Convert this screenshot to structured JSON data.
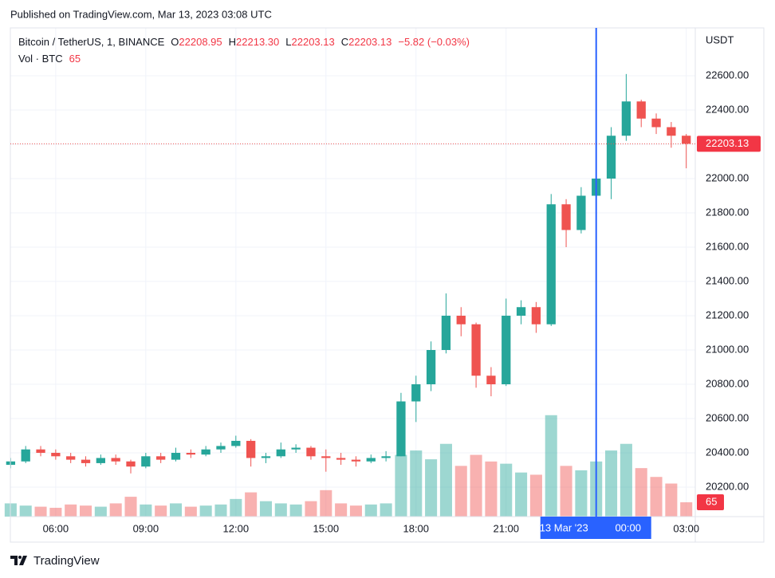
{
  "header": {
    "published": "Published on TradingView.com, Mar 13, 2023 03:08 UTC",
    "symbol": "Bitcoin / TetherUS, 1, BINANCE",
    "o_label": "O",
    "open": "22208.95",
    "h_label": "H",
    "high": "22213.30",
    "l_label": "L",
    "low": "22203.13",
    "c_label": "C",
    "close": "22203.13",
    "change": "−5.82 (−0.03%)",
    "vol_label": "Vol · BTC",
    "vol_value": "65",
    "currency": "USDT"
  },
  "footer": {
    "brand": "TradingView"
  },
  "chart_data": {
    "type": "candlestick",
    "x": [
      4.5,
      5,
      5.5,
      6,
      6.5,
      7,
      7.5,
      8,
      8.5,
      9,
      9.5,
      10,
      10.5,
      11,
      11.5,
      12,
      12.5,
      13,
      13.5,
      14,
      14.5,
      15,
      15.5,
      16,
      16.5,
      17,
      17.5,
      18,
      18.5,
      19,
      19.5,
      20,
      20.5,
      21,
      21.5,
      22,
      22.5,
      23,
      23.5,
      24,
      24.5,
      25,
      25.5,
      26,
      26.5,
      27
    ],
    "open": [
      20330,
      20350,
      20420,
      20400,
      20380,
      20360,
      20340,
      20370,
      20350,
      20320,
      20380,
      20360,
      20400,
      20390,
      20420,
      20440,
      20470,
      20370,
      20380,
      20420,
      20430,
      20380,
      20370,
      20360,
      20350,
      20370,
      20380,
      20700,
      20800,
      21000,
      21200,
      21150,
      20850,
      20800,
      21200,
      21250,
      21150,
      21850,
      21700,
      21900,
      22000,
      22250,
      22450,
      22350,
      22300,
      22250
    ],
    "high": [
      20370,
      20440,
      20440,
      20420,
      20400,
      20380,
      20390,
      20390,
      20360,
      20400,
      20400,
      20430,
      20420,
      20440,
      20460,
      20500,
      20480,
      20400,
      20460,
      20450,
      20440,
      20420,
      20400,
      20380,
      20390,
      20410,
      20750,
      20850,
      21050,
      21330,
      21250,
      21160,
      20900,
      21300,
      21290,
      21280,
      21910,
      21880,
      21950,
      22150,
      22300,
      22610,
      22460,
      22380,
      22330,
      22260
    ],
    "low": [
      20310,
      20340,
      20380,
      20360,
      20340,
      20320,
      20330,
      20330,
      20280,
      20310,
      20340,
      20350,
      20370,
      20380,
      20400,
      20430,
      20320,
      20340,
      20370,
      20400,
      20360,
      20290,
      20330,
      20320,
      20340,
      20350,
      20380,
      20580,
      20760,
      20980,
      21080,
      20780,
      20730,
      20790,
      21150,
      21100,
      21140,
      21600,
      21680,
      21860,
      21880,
      22220,
      22300,
      22260,
      22180,
      22060
    ],
    "close": [
      20350,
      20420,
      20400,
      20380,
      20360,
      20340,
      20370,
      20350,
      20320,
      20380,
      20360,
      20400,
      20390,
      20420,
      20440,
      20470,
      20370,
      20380,
      20420,
      20430,
      20380,
      20370,
      20360,
      20350,
      20370,
      20380,
      20700,
      20800,
      21000,
      21200,
      21150,
      20850,
      20800,
      21200,
      21250,
      21150,
      21850,
      21700,
      21900,
      22000,
      22250,
      22450,
      22350,
      22300,
      22250,
      22203.13
    ],
    "volume": [
      60,
      50,
      45,
      40,
      55,
      50,
      45,
      60,
      90,
      55,
      50,
      60,
      45,
      50,
      55,
      80,
      110,
      70,
      60,
      55,
      70,
      120,
      60,
      50,
      55,
      60,
      280,
      300,
      260,
      330,
      230,
      280,
      250,
      240,
      200,
      190,
      460,
      230,
      210,
      250,
      300,
      330,
      220,
      180,
      150,
      65
    ],
    "up_color": "#26a69a",
    "down_color": "#ef5350",
    "xlim": [
      4.49,
      27.3
    ],
    "ylim": [
      20028,
      22879
    ],
    "vlim": [
      0,
      470
    ],
    "xticks": [
      {
        "value": 6,
        "label": "06:00"
      },
      {
        "value": 9,
        "label": "09:00"
      },
      {
        "value": 12,
        "label": "12:00"
      },
      {
        "value": 15,
        "label": "15:00"
      },
      {
        "value": 18,
        "label": "18:00"
      },
      {
        "value": 21,
        "label": "21:00"
      },
      {
        "value": 27,
        "label": "03:00"
      }
    ],
    "yticks": [
      {
        "value": 20200,
        "label": "20200.00"
      },
      {
        "value": 20400,
        "label": "20400.00"
      },
      {
        "value": 20600,
        "label": "20600.00"
      },
      {
        "value": 20800,
        "label": "20800.00"
      },
      {
        "value": 21000,
        "label": "21000.00"
      },
      {
        "value": 21200,
        "label": "21200.00"
      },
      {
        "value": 21400,
        "label": "21400.00"
      },
      {
        "value": 21600,
        "label": "21600.00"
      },
      {
        "value": 21800,
        "label": "21800.00"
      },
      {
        "value": 22000,
        "label": "22000.00"
      },
      {
        "value": 22200,
        "label": "22200.00"
      },
      {
        "value": 22400,
        "label": "22400.00"
      },
      {
        "value": 22600,
        "label": "22600.00"
      }
    ],
    "last_price": {
      "value": 22203.13,
      "label": "22203.13"
    },
    "last_volume": {
      "value": 65,
      "label": "65"
    },
    "crosshair": {
      "value": 24,
      "date": "13 Mar '23",
      "time": "00:00",
      "color": "#2962ff"
    },
    "grid": true
  }
}
